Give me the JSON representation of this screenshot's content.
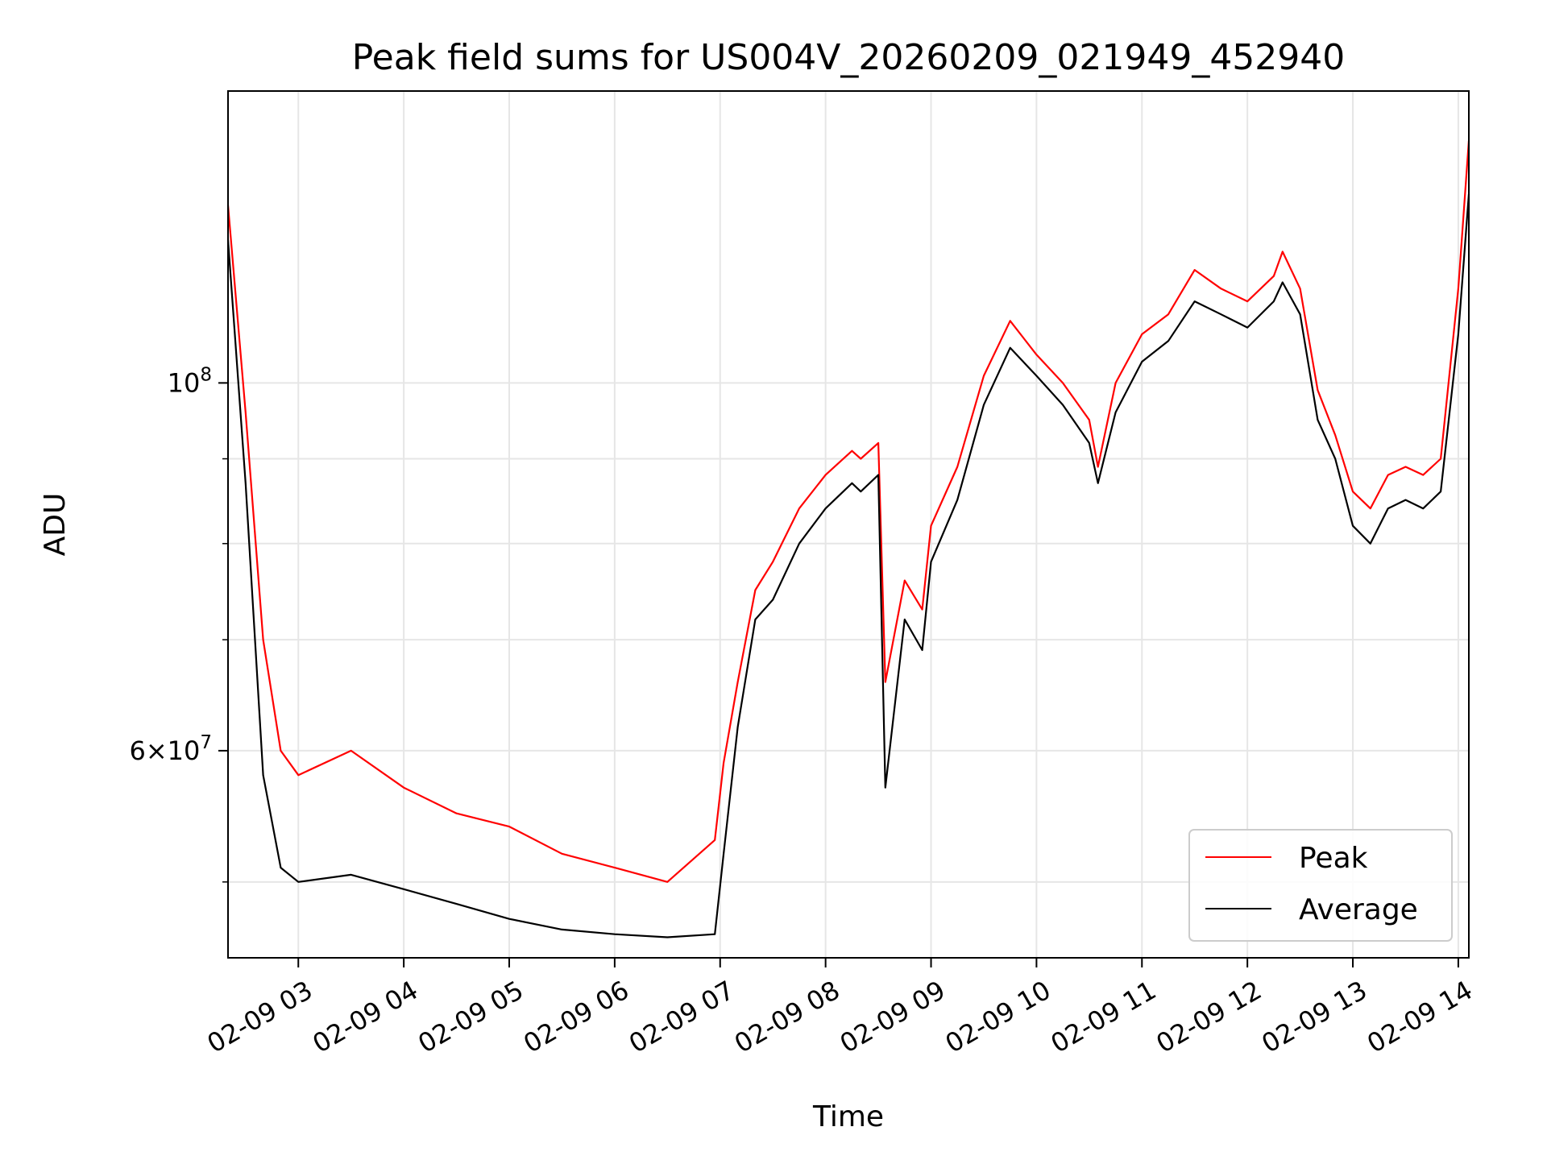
{
  "chart_data": {
    "type": "line",
    "title": "Peak field sums for US004V_20260209_021949_452940",
    "xlabel": "Time",
    "ylabel": "ADU",
    "yscale": "log",
    "grid": true,
    "legend_placement": "lower-right",
    "xlim": [
      "2026-02-09 02:20",
      "2026-02-09 14:06"
    ],
    "ylim": [
      45000000,
      150000000
    ],
    "x_ticks": [
      {
        "value": "2026-02-09 03:00",
        "label": "02-09 03"
      },
      {
        "value": "2026-02-09 04:00",
        "label": "02-09 04"
      },
      {
        "value": "2026-02-09 05:00",
        "label": "02-09 05"
      },
      {
        "value": "2026-02-09 06:00",
        "label": "02-09 06"
      },
      {
        "value": "2026-02-09 07:00",
        "label": "02-09 07"
      },
      {
        "value": "2026-02-09 08:00",
        "label": "02-09 08"
      },
      {
        "value": "2026-02-09 09:00",
        "label": "02-09 09"
      },
      {
        "value": "2026-02-09 10:00",
        "label": "02-09 10"
      },
      {
        "value": "2026-02-09 11:00",
        "label": "02-09 11"
      },
      {
        "value": "2026-02-09 12:00",
        "label": "02-09 12"
      },
      {
        "value": "2026-02-09 13:00",
        "label": "02-09 13"
      },
      {
        "value": "2026-02-09 14:00",
        "label": "02-09 14"
      }
    ],
    "y_major_ticks": [
      {
        "value": 60000000,
        "mantissa": "6",
        "base": "10",
        "exponent": "7"
      },
      {
        "value": 100000000,
        "mantissa": "",
        "base": "10",
        "exponent": "8"
      }
    ],
    "y_minor_ticks": [
      50000000,
      70000000,
      80000000,
      90000000
    ],
    "x": [
      "2026-02-09 02:20",
      "2026-02-09 02:30",
      "2026-02-09 02:40",
      "2026-02-09 02:50",
      "2026-02-09 03:00",
      "2026-02-09 03:30",
      "2026-02-09 04:00",
      "2026-02-09 04:30",
      "2026-02-09 05:00",
      "2026-02-09 05:30",
      "2026-02-09 06:00",
      "2026-02-09 06:30",
      "2026-02-09 06:57",
      "2026-02-09 07:02",
      "2026-02-09 07:10",
      "2026-02-09 07:20",
      "2026-02-09 07:30",
      "2026-02-09 07:45",
      "2026-02-09 08:00",
      "2026-02-09 08:15",
      "2026-02-09 08:20",
      "2026-02-09 08:30",
      "2026-02-09 08:34",
      "2026-02-09 08:45",
      "2026-02-09 08:55",
      "2026-02-09 09:00",
      "2026-02-09 09:15",
      "2026-02-09 09:30",
      "2026-02-09 09:45",
      "2026-02-09 10:00",
      "2026-02-09 10:15",
      "2026-02-09 10:30",
      "2026-02-09 10:35",
      "2026-02-09 10:45",
      "2026-02-09 11:00",
      "2026-02-09 11:15",
      "2026-02-09 11:30",
      "2026-02-09 11:45",
      "2026-02-09 12:00",
      "2026-02-09 12:15",
      "2026-02-09 12:20",
      "2026-02-09 12:30",
      "2026-02-09 12:40",
      "2026-02-09 12:50",
      "2026-02-09 13:00",
      "2026-02-09 13:10",
      "2026-02-09 13:20",
      "2026-02-09 13:30",
      "2026-02-09 13:40",
      "2026-02-09 13:50",
      "2026-02-09 14:00",
      "2026-02-09 14:06"
    ],
    "series": [
      {
        "name": "Average",
        "color": "#000000",
        "values": [
          122000000,
          87000000,
          58000000,
          51000000,
          50000000,
          50500000,
          49500000,
          48500000,
          47500000,
          46800000,
          46500000,
          46300000,
          46500000,
          52000000,
          62000000,
          72000000,
          74000000,
          80000000,
          84000000,
          87000000,
          86000000,
          88000000,
          57000000,
          72000000,
          69000000,
          78000000,
          85000000,
          97000000,
          105000000,
          101000000,
          97000000,
          92000000,
          87000000,
          96000000,
          103000000,
          106000000,
          112000000,
          110000000,
          108000000,
          112000000,
          115000000,
          110000000,
          95000000,
          90000000,
          82000000,
          80000000,
          84000000,
          85000000,
          84000000,
          86000000,
          107000000,
          130000000
        ]
      },
      {
        "name": "Peak",
        "color": "#ff0000",
        "values": [
          128000000,
          96000000,
          70000000,
          60000000,
          58000000,
          60000000,
          57000000,
          55000000,
          54000000,
          52000000,
          51000000,
          50000000,
          53000000,
          59000000,
          66000000,
          75000000,
          78000000,
          84000000,
          88000000,
          91000000,
          90000000,
          92000000,
          66000000,
          76000000,
          73000000,
          82000000,
          89000000,
          101000000,
          109000000,
          104000000,
          100000000,
          95000000,
          89000000,
          100000000,
          107000000,
          110000000,
          117000000,
          114000000,
          112000000,
          116000000,
          120000000,
          114000000,
          99000000,
          93000000,
          86000000,
          84000000,
          88000000,
          89000000,
          88000000,
          90000000,
          114000000,
          140000000
        ]
      }
    ]
  }
}
